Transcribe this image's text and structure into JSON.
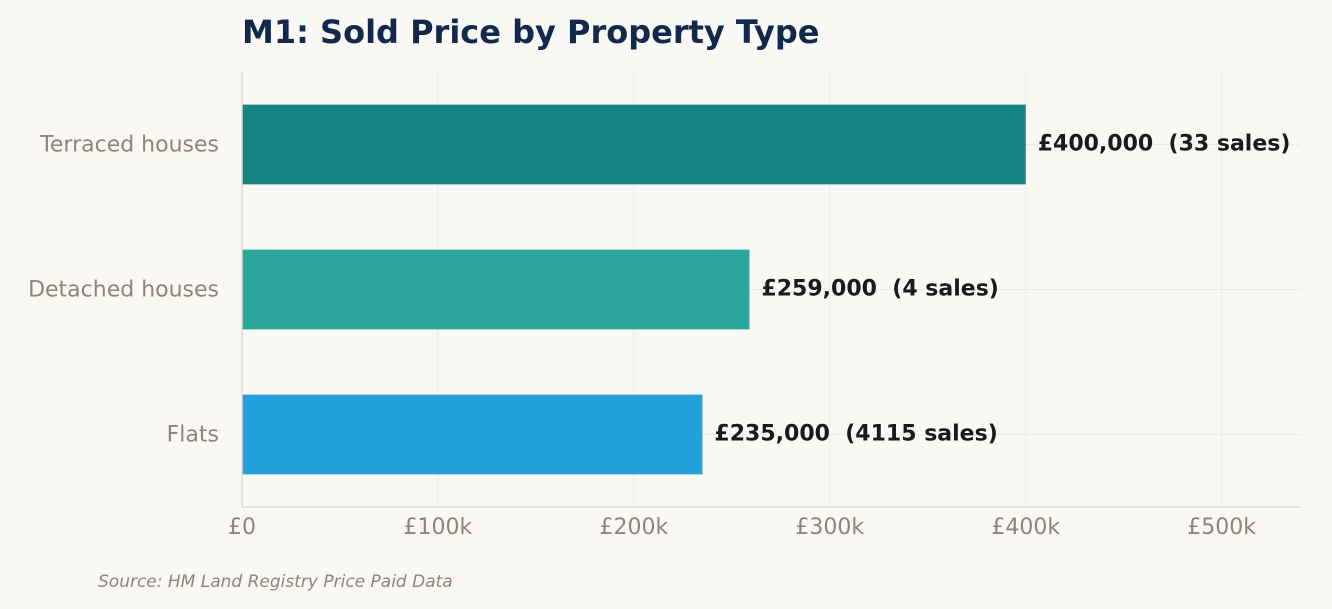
{
  "chart_data": {
    "type": "bar",
    "orientation": "horizontal",
    "title": "M1: Sold Price by Property Type",
    "categories": [
      "Terraced houses",
      "Detached houses",
      "Flats"
    ],
    "values": [
      400000,
      259000,
      235000
    ],
    "sales": [
      33,
      4,
      4115
    ],
    "data_labels": [
      "£400,000  (33 sales)",
      "£259,000  (4 sales)",
      "£235,000  (4115 sales)"
    ],
    "colors": [
      "#178282",
      "#2ca59c",
      "#239fd9"
    ],
    "xlim": [
      0,
      540000
    ],
    "xticks": [
      0,
      100000,
      200000,
      300000,
      400000,
      500000
    ],
    "xtick_labels": [
      "£0",
      "£100k",
      "£200k",
      "£300k",
      "£400k",
      "£500k"
    ],
    "xlabel": "",
    "ylabel": "",
    "grid": "vertical",
    "legend": "none"
  },
  "source_note": "Source: HM Land Registry Price Paid Data",
  "colors": {
    "background": "#f9f8f4",
    "title": "#13294b",
    "tick_label": "#8b8677",
    "data_label": "#1a1a1a",
    "grid": "#ecebe5",
    "axis": "#dedbd2"
  }
}
